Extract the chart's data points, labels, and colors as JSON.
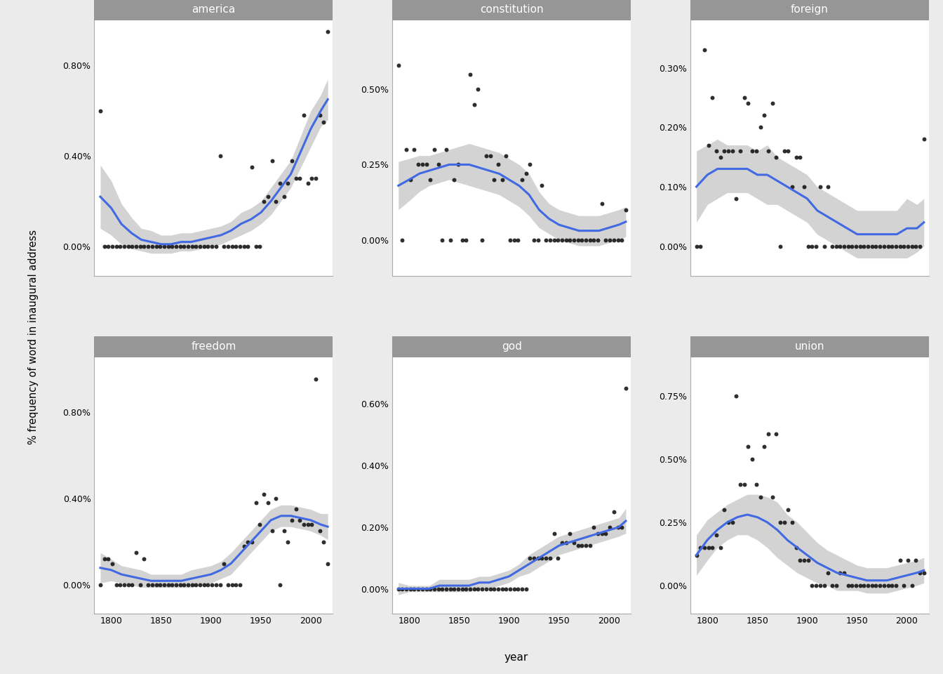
{
  "words": [
    "america",
    "constitution",
    "foreign",
    "freedom",
    "god",
    "union"
  ],
  "background_color": "#ebebeb",
  "panel_bg": "#ffffff",
  "strip_bg": "#969696",
  "strip_text_color": "#ffffff",
  "outer_bg": "#ebebeb",
  "grid_color": "#ffffff",
  "point_color": "#111111",
  "line_color": "#4169E1",
  "ribbon_color": "#b0b0b0",
  "ribbon_alpha": 0.55,
  "ylabel": "% frequency of word in inaugural address",
  "xlabel": "year",
  "x_ticks": [
    1800,
    1850,
    1900,
    1950,
    2000
  ],
  "xlim": [
    1783,
    2022
  ],
  "america": {
    "scatter_x": [
      1789,
      1793,
      1797,
      1801,
      1805,
      1809,
      1813,
      1817,
      1821,
      1825,
      1829,
      1833,
      1837,
      1841,
      1845,
      1849,
      1853,
      1857,
      1861,
      1865,
      1869,
      1873,
      1877,
      1881,
      1885,
      1889,
      1893,
      1897,
      1901,
      1905,
      1909,
      1913,
      1917,
      1921,
      1925,
      1929,
      1933,
      1937,
      1941,
      1945,
      1949,
      1953,
      1957,
      1961,
      1965,
      1969,
      1973,
      1977,
      1981,
      1985,
      1989,
      1993,
      1997,
      2001,
      2005,
      2009,
      2013,
      2017
    ],
    "scatter_y": [
      0.006,
      0.0,
      0.0,
      0.0,
      0.0,
      0.0,
      0.0,
      0.0,
      0.0,
      0.0,
      0.0,
      0.0,
      0.0,
      0.0,
      0.0,
      0.0,
      0.0,
      0.0,
      0.0,
      0.0,
      0.0,
      0.0,
      0.0,
      0.0,
      0.0,
      0.0,
      0.0,
      0.0,
      0.0,
      0.0,
      0.004,
      0.0,
      0.0,
      0.0,
      0.0,
      0.0,
      0.0,
      0.0,
      0.0035,
      0.0,
      0.0,
      0.002,
      0.0022,
      0.0038,
      0.002,
      0.0028,
      0.0022,
      0.0028,
      0.0038,
      0.003,
      0.003,
      0.0058,
      0.0028,
      0.003,
      0.003,
      0.0058,
      0.0055,
      0.0095
    ],
    "smooth_x": [
      1789,
      1800,
      1810,
      1820,
      1830,
      1840,
      1850,
      1860,
      1870,
      1880,
      1890,
      1900,
      1910,
      1920,
      1930,
      1940,
      1950,
      1960,
      1970,
      1980,
      1990,
      2000,
      2010,
      2017
    ],
    "smooth_y": [
      0.0022,
      0.0017,
      0.001,
      0.0006,
      0.0003,
      0.0002,
      0.0001,
      0.0001,
      0.0002,
      0.0002,
      0.0003,
      0.0004,
      0.0005,
      0.0007,
      0.001,
      0.0012,
      0.0015,
      0.002,
      0.0026,
      0.0032,
      0.0042,
      0.0052,
      0.006,
      0.0065
    ],
    "ribbon_lo": [
      0.0008,
      0.0005,
      0.0001,
      -0.0001,
      -0.0002,
      -0.0003,
      -0.0003,
      -0.0003,
      -0.0002,
      -0.0002,
      -0.0001,
      0.0,
      0.0001,
      0.0003,
      0.0005,
      0.0007,
      0.001,
      0.0014,
      0.002,
      0.0026,
      0.0035,
      0.0044,
      0.0053,
      0.0056
    ],
    "ribbon_hi": [
      0.0036,
      0.0029,
      0.0019,
      0.0013,
      0.0008,
      0.0007,
      0.0005,
      0.0005,
      0.0006,
      0.0006,
      0.0007,
      0.0008,
      0.0009,
      0.0011,
      0.0015,
      0.0017,
      0.002,
      0.0026,
      0.0032,
      0.0038,
      0.0049,
      0.006,
      0.0067,
      0.0074
    ],
    "ylim": [
      -0.0013,
      0.01
    ],
    "yticks": [
      0.0,
      0.004,
      0.008
    ],
    "yticklabels": [
      "0.00%",
      "0.40%",
      "0.80%"
    ]
  },
  "constitution": {
    "scatter_x": [
      1789,
      1793,
      1797,
      1801,
      1805,
      1809,
      1813,
      1817,
      1821,
      1825,
      1829,
      1833,
      1837,
      1841,
      1845,
      1849,
      1853,
      1857,
      1861,
      1865,
      1869,
      1873,
      1877,
      1881,
      1885,
      1889,
      1893,
      1897,
      1901,
      1905,
      1909,
      1913,
      1917,
      1921,
      1925,
      1929,
      1933,
      1937,
      1941,
      1945,
      1949,
      1953,
      1957,
      1961,
      1965,
      1969,
      1973,
      1977,
      1981,
      1985,
      1989,
      1993,
      1997,
      2001,
      2005,
      2009,
      2013,
      2017
    ],
    "scatter_y": [
      0.0058,
      0.0,
      0.003,
      0.002,
      0.003,
      0.0025,
      0.0025,
      0.0025,
      0.002,
      0.003,
      0.0025,
      0.0,
      0.003,
      0.0,
      0.002,
      0.0025,
      0.0,
      0.0,
      0.0055,
      0.0045,
      0.005,
      0.0,
      0.0028,
      0.0028,
      0.002,
      0.0025,
      0.002,
      0.0028,
      0.0,
      0.0,
      0.0,
      0.002,
      0.0022,
      0.0025,
      0.0,
      0.0,
      0.0018,
      0.0,
      0.0,
      0.0,
      0.0,
      0.0,
      0.0,
      0.0,
      0.0,
      0.0,
      0.0,
      0.0,
      0.0,
      0.0,
      0.0,
      0.0012,
      0.0,
      0.0,
      0.0,
      0.0,
      0.0,
      0.001
    ],
    "smooth_x": [
      1789,
      1800,
      1810,
      1820,
      1830,
      1840,
      1850,
      1860,
      1870,
      1880,
      1890,
      1900,
      1910,
      1920,
      1930,
      1940,
      1950,
      1960,
      1970,
      1980,
      1990,
      2000,
      2010,
      2017
    ],
    "smooth_y": [
      0.0018,
      0.002,
      0.0022,
      0.0023,
      0.0024,
      0.0025,
      0.0025,
      0.0025,
      0.0024,
      0.0023,
      0.0022,
      0.002,
      0.0018,
      0.0015,
      0.001,
      0.0007,
      0.0005,
      0.0004,
      0.0003,
      0.0003,
      0.0003,
      0.0004,
      0.0005,
      0.0006
    ],
    "ribbon_lo": [
      0.001,
      0.0013,
      0.0016,
      0.0018,
      0.0019,
      0.002,
      0.0019,
      0.0018,
      0.0017,
      0.0016,
      0.0015,
      0.0013,
      0.0011,
      0.0008,
      0.0004,
      0.0002,
      0.0,
      -0.0001,
      -0.0002,
      -0.0002,
      -0.0002,
      -0.0001,
      0.0,
      0.0001
    ],
    "ribbon_hi": [
      0.0026,
      0.0027,
      0.0028,
      0.0028,
      0.0029,
      0.003,
      0.0031,
      0.0032,
      0.0031,
      0.003,
      0.0029,
      0.0027,
      0.0025,
      0.0022,
      0.0016,
      0.0012,
      0.001,
      0.0009,
      0.0008,
      0.0008,
      0.0008,
      0.0009,
      0.001,
      0.0011
    ],
    "ylim": [
      -0.0012,
      0.0073
    ],
    "yticks": [
      0.0,
      0.0025,
      0.005
    ],
    "yticklabels": [
      "0.00%",
      "0.25%",
      "0.50%"
    ]
  },
  "foreign": {
    "scatter_x": [
      1789,
      1793,
      1797,
      1801,
      1805,
      1809,
      1813,
      1817,
      1821,
      1825,
      1829,
      1833,
      1837,
      1841,
      1845,
      1849,
      1853,
      1857,
      1861,
      1865,
      1869,
      1873,
      1877,
      1881,
      1885,
      1889,
      1893,
      1897,
      1901,
      1905,
      1909,
      1913,
      1917,
      1921,
      1925,
      1929,
      1933,
      1937,
      1941,
      1945,
      1949,
      1953,
      1957,
      1961,
      1965,
      1969,
      1973,
      1977,
      1981,
      1985,
      1989,
      1993,
      1997,
      2001,
      2005,
      2009,
      2013,
      2017
    ],
    "scatter_y": [
      0.0,
      0.0,
      0.0033,
      0.0017,
      0.0025,
      0.0016,
      0.0015,
      0.0016,
      0.0016,
      0.0016,
      0.0008,
      0.0016,
      0.0025,
      0.0024,
      0.0016,
      0.0016,
      0.002,
      0.0022,
      0.0016,
      0.0024,
      0.0015,
      0.0,
      0.0016,
      0.0016,
      0.001,
      0.0015,
      0.0015,
      0.001,
      0.0,
      0.0,
      0.0,
      0.001,
      0.0,
      0.001,
      0.0,
      0.0,
      0.0,
      0.0,
      0.0,
      0.0,
      0.0,
      0.0,
      0.0,
      0.0,
      0.0,
      0.0,
      0.0,
      0.0,
      0.0,
      0.0,
      0.0,
      0.0,
      0.0,
      0.0,
      0.0,
      0.0,
      0.0,
      0.0018
    ],
    "smooth_x": [
      1789,
      1800,
      1810,
      1820,
      1830,
      1840,
      1850,
      1860,
      1870,
      1880,
      1890,
      1900,
      1910,
      1920,
      1930,
      1940,
      1950,
      1960,
      1970,
      1980,
      1990,
      2000,
      2010,
      2017
    ],
    "smooth_y": [
      0.001,
      0.0012,
      0.0013,
      0.0013,
      0.0013,
      0.0013,
      0.0012,
      0.0012,
      0.0011,
      0.001,
      0.0009,
      0.0008,
      0.0006,
      0.0005,
      0.0004,
      0.0003,
      0.0002,
      0.0002,
      0.0002,
      0.0002,
      0.0002,
      0.0003,
      0.0003,
      0.0004
    ],
    "ribbon_lo": [
      0.0004,
      0.0007,
      0.0008,
      0.0009,
      0.0009,
      0.0009,
      0.0008,
      0.0007,
      0.0007,
      0.0006,
      0.0005,
      0.0004,
      0.0002,
      0.0001,
      0.0,
      -0.0001,
      -0.0002,
      -0.0002,
      -0.0002,
      -0.0002,
      -0.0002,
      -0.0002,
      -0.0001,
      0.0
    ],
    "ribbon_hi": [
      0.0016,
      0.0017,
      0.0018,
      0.0017,
      0.0017,
      0.0017,
      0.0016,
      0.0017,
      0.0015,
      0.0014,
      0.0013,
      0.0012,
      0.001,
      0.0009,
      0.0008,
      0.0007,
      0.0006,
      0.0006,
      0.0006,
      0.0006,
      0.0006,
      0.0008,
      0.0007,
      0.0008
    ],
    "ylim": [
      -0.0005,
      0.0038
    ],
    "yticks": [
      0.0,
      0.001,
      0.002,
      0.003
    ],
    "yticklabels": [
      "0.00%",
      "0.10%",
      "0.20%",
      "0.30%"
    ]
  },
  "freedom": {
    "scatter_x": [
      1789,
      1793,
      1797,
      1801,
      1805,
      1809,
      1813,
      1817,
      1821,
      1825,
      1829,
      1833,
      1837,
      1841,
      1845,
      1849,
      1853,
      1857,
      1861,
      1865,
      1869,
      1873,
      1877,
      1881,
      1885,
      1889,
      1893,
      1897,
      1901,
      1905,
      1909,
      1913,
      1917,
      1921,
      1925,
      1929,
      1933,
      1937,
      1941,
      1945,
      1949,
      1953,
      1957,
      1961,
      1965,
      1969,
      1973,
      1977,
      1981,
      1985,
      1989,
      1993,
      1997,
      2001,
      2005,
      2009,
      2013,
      2017
    ],
    "scatter_y": [
      0.0,
      0.0012,
      0.0012,
      0.001,
      0.0,
      0.0,
      0.0,
      0.0,
      0.0,
      0.0015,
      0.0,
      0.0012,
      0.0,
      0.0,
      0.0,
      0.0,
      0.0,
      0.0,
      0.0,
      0.0,
      0.0,
      0.0,
      0.0,
      0.0,
      0.0,
      0.0,
      0.0,
      0.0,
      0.0,
      0.0,
      0.0,
      0.001,
      0.0,
      0.0,
      0.0,
      0.0,
      0.0018,
      0.002,
      0.002,
      0.0038,
      0.0028,
      0.0042,
      0.0038,
      0.0025,
      0.004,
      0.0,
      0.0025,
      0.002,
      0.003,
      0.0035,
      0.003,
      0.0028,
      0.0028,
      0.0028,
      0.0095,
      0.0025,
      0.002,
      0.001
    ],
    "smooth_x": [
      1789,
      1800,
      1810,
      1820,
      1830,
      1840,
      1850,
      1860,
      1870,
      1880,
      1890,
      1900,
      1910,
      1920,
      1930,
      1940,
      1950,
      1960,
      1970,
      1980,
      1990,
      2000,
      2010,
      2017
    ],
    "smooth_y": [
      0.0008,
      0.0007,
      0.0005,
      0.0004,
      0.0003,
      0.0002,
      0.0002,
      0.0002,
      0.0002,
      0.0003,
      0.0004,
      0.0005,
      0.0007,
      0.001,
      0.0015,
      0.002,
      0.0025,
      0.003,
      0.0032,
      0.0032,
      0.0031,
      0.003,
      0.0028,
      0.0027
    ],
    "ribbon_lo": [
      0.0001,
      0.0002,
      0.0001,
      0.0,
      -0.0001,
      -0.0001,
      -0.0001,
      -0.0001,
      -0.0001,
      -0.0001,
      0.0,
      0.0001,
      0.0003,
      0.0005,
      0.001,
      0.0015,
      0.002,
      0.0025,
      0.0027,
      0.0027,
      0.0026,
      0.0025,
      0.0023,
      0.0021
    ],
    "ribbon_hi": [
      0.0015,
      0.0012,
      0.0009,
      0.0008,
      0.0007,
      0.0005,
      0.0005,
      0.0005,
      0.0005,
      0.0007,
      0.0008,
      0.0009,
      0.0011,
      0.0015,
      0.002,
      0.0025,
      0.003,
      0.0035,
      0.0037,
      0.0037,
      0.0036,
      0.0035,
      0.0033,
      0.0033
    ],
    "ylim": [
      -0.0013,
      0.0105
    ],
    "yticks": [
      0.0,
      0.004,
      0.008
    ],
    "yticklabels": [
      "0.00%",
      "0.40%",
      "0.80%"
    ]
  },
  "god": {
    "scatter_x": [
      1789,
      1793,
      1797,
      1801,
      1805,
      1809,
      1813,
      1817,
      1821,
      1825,
      1829,
      1833,
      1837,
      1841,
      1845,
      1849,
      1853,
      1857,
      1861,
      1865,
      1869,
      1873,
      1877,
      1881,
      1885,
      1889,
      1893,
      1897,
      1901,
      1905,
      1909,
      1913,
      1917,
      1921,
      1925,
      1929,
      1933,
      1937,
      1941,
      1945,
      1949,
      1953,
      1957,
      1961,
      1965,
      1969,
      1973,
      1977,
      1981,
      1985,
      1989,
      1993,
      1997,
      2001,
      2005,
      2009,
      2013,
      2017
    ],
    "scatter_y": [
      0.0,
      0.0,
      0.0,
      0.0,
      0.0,
      0.0,
      0.0,
      0.0,
      0.0,
      0.0,
      0.0,
      0.0,
      0.0,
      0.0,
      0.0,
      0.0,
      0.0,
      0.0,
      0.0,
      0.0,
      0.0,
      0.0,
      0.0,
      0.0,
      0.0,
      0.0,
      0.0,
      0.0,
      0.0,
      0.0,
      0.0,
      0.0,
      0.0,
      0.001,
      0.001,
      0.001,
      0.001,
      0.001,
      0.001,
      0.0018,
      0.001,
      0.0015,
      0.0015,
      0.0018,
      0.0015,
      0.0014,
      0.0014,
      0.0014,
      0.0014,
      0.002,
      0.0018,
      0.0018,
      0.0018,
      0.002,
      0.0025,
      0.002,
      0.002,
      0.0065
    ],
    "smooth_x": [
      1789,
      1800,
      1810,
      1820,
      1830,
      1840,
      1850,
      1860,
      1870,
      1880,
      1890,
      1900,
      1910,
      1920,
      1930,
      1940,
      1950,
      1960,
      1970,
      1980,
      1990,
      2000,
      2010,
      2017
    ],
    "smooth_y": [
      0.0,
      0.0,
      0.0,
      0.0,
      0.0001,
      0.0001,
      0.0001,
      0.0001,
      0.0002,
      0.0002,
      0.0003,
      0.0004,
      0.0006,
      0.0008,
      0.001,
      0.0012,
      0.0014,
      0.0015,
      0.0016,
      0.0017,
      0.0018,
      0.0019,
      0.002,
      0.0022
    ],
    "ribbon_lo": [
      -0.0002,
      -0.0001,
      -0.0001,
      -0.0001,
      -0.0001,
      -0.0001,
      -0.0001,
      -0.0001,
      0.0,
      0.0,
      0.0001,
      0.0002,
      0.0004,
      0.0005,
      0.0007,
      0.0009,
      0.0011,
      0.0012,
      0.0013,
      0.0014,
      0.0015,
      0.0016,
      0.0017,
      0.0018
    ],
    "ribbon_hi": [
      0.0002,
      0.0001,
      0.0001,
      0.0001,
      0.0003,
      0.0003,
      0.0003,
      0.0003,
      0.0004,
      0.0004,
      0.0005,
      0.0006,
      0.0008,
      0.0011,
      0.0013,
      0.0015,
      0.0017,
      0.0018,
      0.0019,
      0.002,
      0.0021,
      0.0022,
      0.0023,
      0.0026
    ],
    "ylim": [
      -0.0008,
      0.0075
    ],
    "yticks": [
      0.0,
      0.002,
      0.004,
      0.006
    ],
    "yticklabels": [
      "0.00%",
      "0.20%",
      "0.40%",
      "0.60%"
    ]
  },
  "union": {
    "scatter_x": [
      1789,
      1793,
      1797,
      1801,
      1805,
      1809,
      1813,
      1817,
      1821,
      1825,
      1829,
      1833,
      1837,
      1841,
      1845,
      1849,
      1853,
      1857,
      1861,
      1865,
      1869,
      1873,
      1877,
      1881,
      1885,
      1889,
      1893,
      1897,
      1901,
      1905,
      1909,
      1913,
      1917,
      1921,
      1925,
      1929,
      1933,
      1937,
      1941,
      1945,
      1949,
      1953,
      1957,
      1961,
      1965,
      1969,
      1973,
      1977,
      1981,
      1985,
      1989,
      1993,
      1997,
      2001,
      2005,
      2009,
      2013,
      2017
    ],
    "scatter_y": [
      0.0012,
      0.0015,
      0.0015,
      0.0015,
      0.0015,
      0.002,
      0.0015,
      0.003,
      0.0025,
      0.0025,
      0.0075,
      0.004,
      0.004,
      0.0055,
      0.005,
      0.004,
      0.0035,
      0.0055,
      0.006,
      0.0035,
      0.006,
      0.0025,
      0.0025,
      0.003,
      0.0025,
      0.0015,
      0.001,
      0.001,
      0.001,
      0.0,
      0.0,
      0.0,
      0.0,
      0.0005,
      0.0,
      0.0,
      0.0005,
      0.0005,
      0.0,
      0.0,
      0.0,
      0.0,
      0.0,
      0.0,
      0.0,
      0.0,
      0.0,
      0.0,
      0.0,
      0.0,
      0.0,
      0.001,
      0.0,
      0.001,
      0.0,
      0.001,
      0.0005,
      0.0005
    ],
    "smooth_x": [
      1789,
      1800,
      1810,
      1820,
      1830,
      1840,
      1850,
      1860,
      1870,
      1880,
      1890,
      1900,
      1910,
      1920,
      1930,
      1940,
      1950,
      1960,
      1970,
      1980,
      1990,
      2000,
      2010,
      2017
    ],
    "smooth_y": [
      0.0012,
      0.0018,
      0.0022,
      0.0025,
      0.0027,
      0.0028,
      0.0027,
      0.0025,
      0.0022,
      0.0018,
      0.0015,
      0.0012,
      0.0009,
      0.0007,
      0.0005,
      0.0004,
      0.0003,
      0.0002,
      0.0002,
      0.0002,
      0.0003,
      0.0004,
      0.0005,
      0.0006
    ],
    "ribbon_lo": [
      0.0004,
      0.001,
      0.0015,
      0.0018,
      0.002,
      0.002,
      0.0018,
      0.0015,
      0.0011,
      0.0008,
      0.0005,
      0.0003,
      0.0001,
      0.0,
      -0.0002,
      -0.0002,
      -0.0002,
      -0.0003,
      -0.0003,
      -0.0003,
      -0.0002,
      -0.0001,
      0.0,
      0.0001
    ],
    "ribbon_hi": [
      0.002,
      0.0026,
      0.0029,
      0.0032,
      0.0034,
      0.0036,
      0.0036,
      0.0035,
      0.0033,
      0.0028,
      0.0025,
      0.0021,
      0.0017,
      0.0014,
      0.0012,
      0.001,
      0.0008,
      0.0007,
      0.0007,
      0.0007,
      0.0008,
      0.0009,
      0.001,
      0.0011
    ],
    "ylim": [
      -0.0011,
      0.009
    ],
    "yticks": [
      0.0,
      0.0025,
      0.005,
      0.0075
    ],
    "yticklabels": [
      "0.00%",
      "0.25%",
      "0.50%",
      "0.75%"
    ]
  }
}
